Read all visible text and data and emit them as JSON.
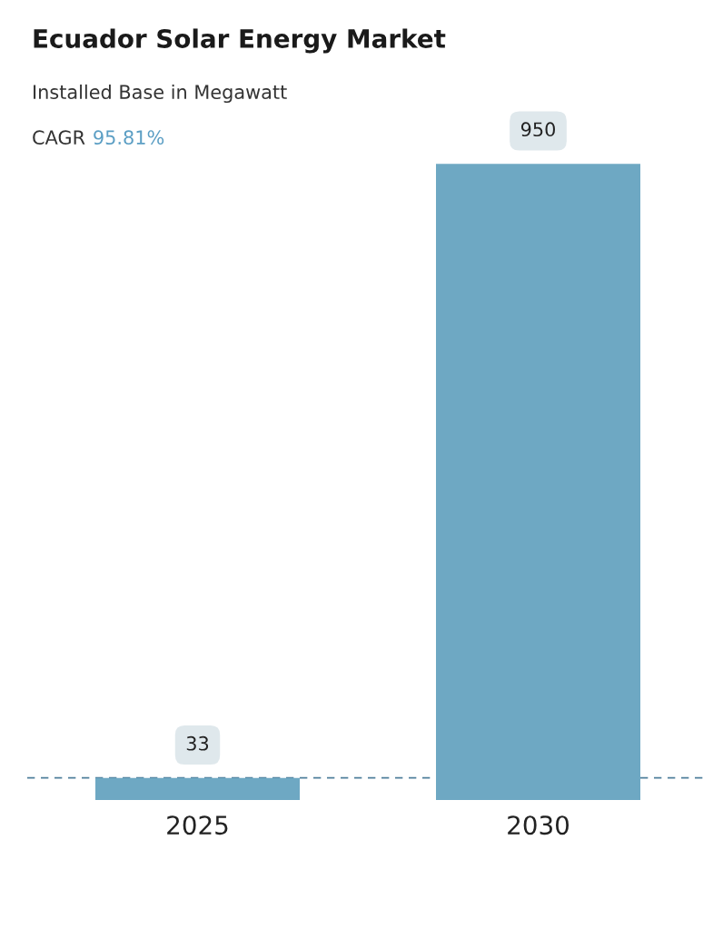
{
  "chart_data": {
    "type": "bar",
    "title": "Ecuador Solar Energy Market",
    "subtitle": "Installed Base in Megawatt",
    "annotations": [
      "CAGR",
      "95.81%"
    ],
    "categories": [
      "2025",
      "2030"
    ],
    "values": [
      33,
      950
    ],
    "color": "#6ea8c3",
    "data_labels": true,
    "ref_lines": [
      {
        "axis": "y",
        "value": 33,
        "color": "#4f7f9c",
        "line_style": "dashed"
      }
    ],
    "legend": false
  }
}
